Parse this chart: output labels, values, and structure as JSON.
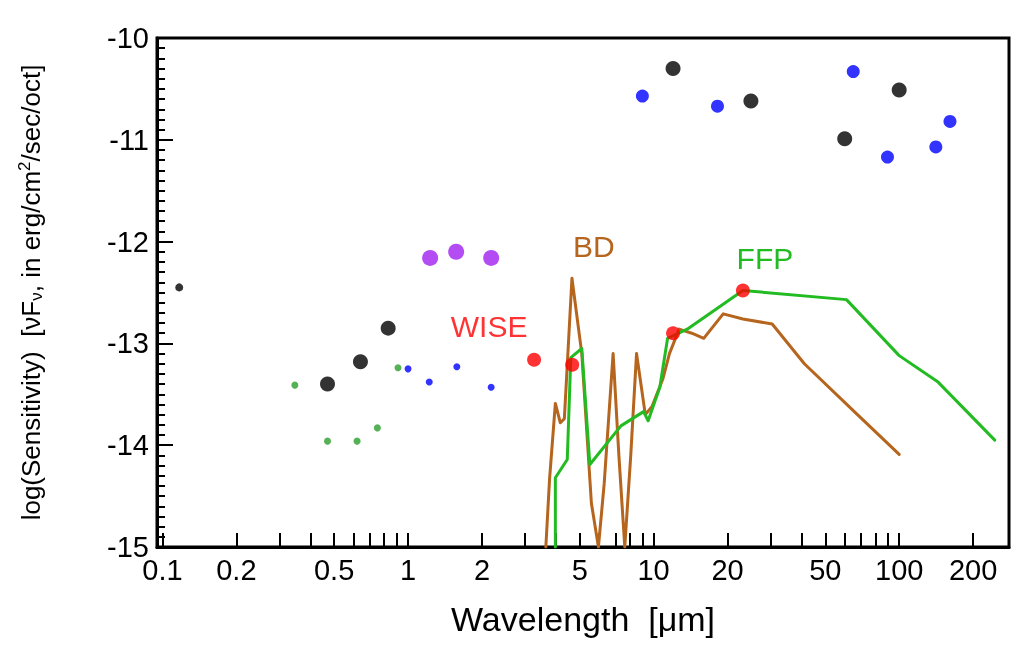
{
  "chart_data": {
    "type": "scatter",
    "xlabel": "Wavelength  [μm]",
    "ylabel": "log(Sensitivity)  [νF$_{ν}$, in erg/cm$^{2}$/sec/oct]",
    "log": "x",
    "grid": false,
    "legend": false,
    "marker": "circle",
    "xlim": [
      0.095,
      280
    ],
    "ylim": [
      -15,
      -10
    ],
    "xticks": [
      0.1,
      0.2,
      {
        "value": 0.3,
        "label": null
      },
      {
        "value": 0.4,
        "label": null
      },
      0.5,
      {
        "value": 0.6,
        "label": null
      },
      {
        "value": 0.7,
        "label": null
      },
      {
        "value": 0.8,
        "label": null
      },
      {
        "value": 0.9,
        "label": null
      },
      1,
      2,
      {
        "value": 3,
        "label": null
      },
      {
        "value": 4,
        "label": null
      },
      5,
      {
        "value": 6,
        "label": null
      },
      {
        "value": 7,
        "label": null
      },
      {
        "value": 8,
        "label": null
      },
      {
        "value": 9,
        "label": null
      },
      10,
      20,
      {
        "value": 30,
        "label": null
      },
      {
        "value": 40,
        "label": null
      },
      50,
      {
        "value": 60,
        "label": null
      },
      {
        "value": 70,
        "label": null
      },
      {
        "value": 80,
        "label": null
      },
      {
        "value": 90,
        "label": null
      },
      100,
      200
    ],
    "yticks": [
      -15,
      -14,
      -13,
      -12,
      -11,
      -10
    ],
    "series": [
      {
        "type": "scatter",
        "color": "#000000",
        "x": [
          0.117
        ],
        "values": [
          -12.45
        ]
      },
      {
        "type": "scatter",
        "color": "#000000",
        "x": [
          0.47,
          0.64,
          0.83,
          12,
          24.9,
          60,
          100
        ],
        "values": [
          -13.4,
          -13.18,
          -12.85,
          -10.3,
          -10.62,
          -10.99,
          -10.51
        ]
      },
      {
        "type": "scatter",
        "color": "#0000ff",
        "x": [
          9.0,
          18.2,
          65,
          89.6,
          141,
          161
        ],
        "values": [
          -10.57,
          -10.67,
          -10.33,
          -11.17,
          -11.07,
          -10.82
        ]
      },
      {
        "type": "scatter",
        "color": "#a020f0",
        "x": [
          1.23,
          1.57,
          2.18
        ],
        "values": [
          -12.16,
          -12.1,
          -12.16
        ]
      },
      {
        "type": "scatter",
        "color": "#2a9d2a",
        "x": [
          0.346,
          0.47,
          0.62,
          0.75,
          0.91
        ],
        "values": [
          -13.41,
          -13.96,
          -13.96,
          -13.83,
          -13.24
        ]
      },
      {
        "type": "scatter",
        "color": "#0000ff",
        "x": [
          1.0,
          1.22,
          1.58,
          2.18
        ],
        "values": [
          -13.25,
          -13.38,
          -13.23,
          -13.43
        ]
      },
      {
        "type": "line",
        "name": "BD",
        "color": "#b5651d",
        "marker": "none",
        "x": [
          3.64,
          3.77,
          3.98,
          4.17,
          4.33,
          4.65,
          5.1,
          5.58,
          5.96,
          6.29,
          6.84,
          7.22,
          7.63,
          8.07,
          8.52,
          9.25,
          9.85,
          10.9,
          11.6,
          12.7,
          14.3,
          16.0,
          19.2,
          23.1,
          30.4,
          41.1,
          66.3,
          100
        ],
        "values": [
          -15,
          -14.33,
          -13.59,
          -13.78,
          -13.74,
          -12.36,
          -13.1,
          -14.57,
          -15,
          -14.38,
          -13.1,
          -14.1,
          -15,
          -14.1,
          -13.1,
          -13.7,
          -13.62,
          -13.35,
          -13.1,
          -12.86,
          -12.9,
          -12.95,
          -12.71,
          -12.76,
          -12.81,
          -13.2,
          -13.68,
          -14.09
        ]
      },
      {
        "type": "line",
        "name": "FFP",
        "color": "#22bb22",
        "marker": "none",
        "x": [
          3.98,
          3.98,
          4.45,
          4.6,
          5.1,
          5.5,
          7.36,
          9.1,
          9.5,
          10.6,
          11.4,
          13.7,
          23.1,
          61,
          100,
          144,
          245
        ],
        "values": [
          -15,
          -14.32,
          -14.14,
          -13.14,
          -13.05,
          -14.19,
          -13.81,
          -13.67,
          -13.76,
          -13.43,
          -12.95,
          -12.86,
          -12.48,
          -12.57,
          -13.12,
          -13.38,
          -13.95
        ]
      },
      {
        "type": "scatter",
        "name": "WISE",
        "color": "#ff0000",
        "x": [
          3.26,
          4.66,
          12,
          23.1
        ],
        "values": [
          -13.16,
          -13.21,
          -12.9,
          -12.48
        ]
      }
    ]
  }
}
